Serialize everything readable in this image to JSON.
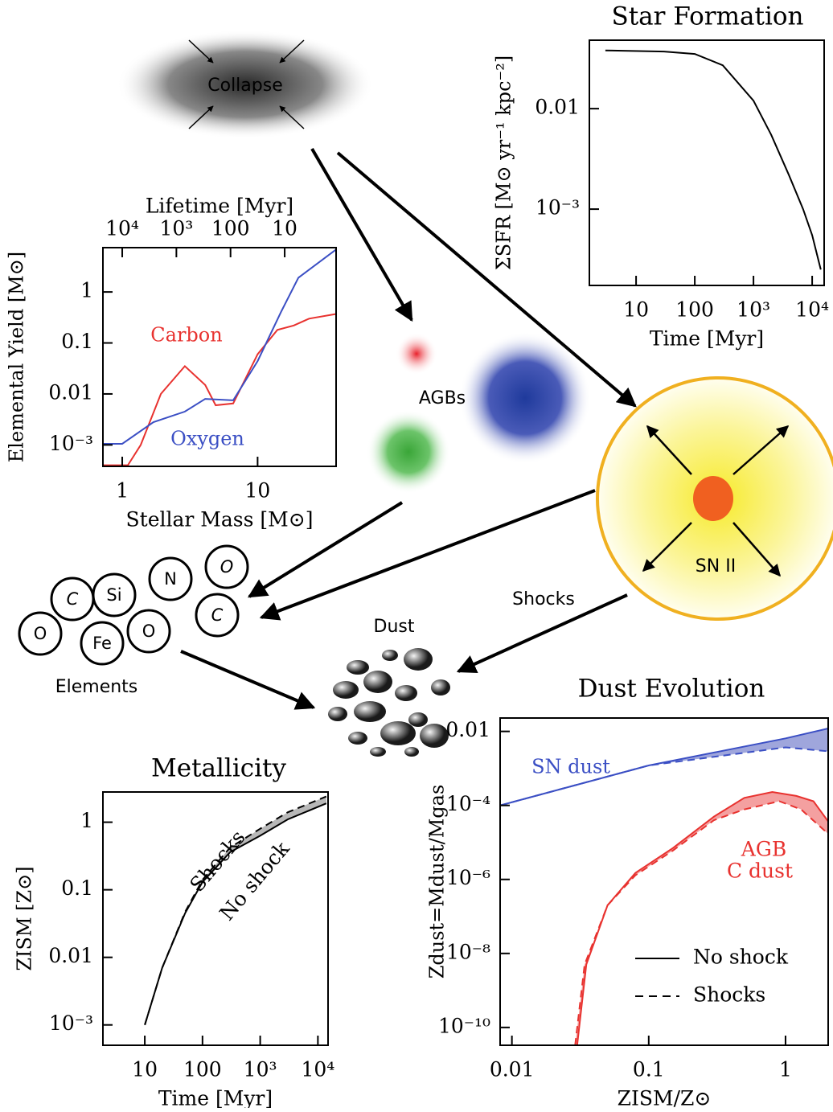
{
  "diagram": {
    "collapse": "Collapse",
    "agbs": "AGBs",
    "sn": "SN II",
    "shocks": "Shocks",
    "dust": "Dust",
    "elements_label": "Elements",
    "elements": [
      "C",
      "Si",
      "N",
      "O",
      "O",
      "Fe",
      "O",
      "C"
    ]
  },
  "chart_data": [
    {
      "type": "line",
      "title": "Star Formation",
      "xlabel": "Time [Myr]",
      "ylabel": "ΣSFR [M⊙ yr⁻¹ kpc⁻²]",
      "xscale": "log",
      "yscale": "log",
      "xlim": [
        1.6,
        16000
      ],
      "ylim": [
        0.000174,
        0.048
      ],
      "xticks": [
        10,
        100,
        {
          "value": 1000,
          "label": "10³"
        },
        {
          "value": 10000,
          "label": "10⁴"
        }
      ],
      "yticks": [
        {
          "value": 0.001,
          "label": "10⁻³"
        },
        0.01
      ],
      "series": [
        {
          "color": "#000000",
          "x": [
            3,
            30,
            100,
            300,
            1000,
            2000,
            4000,
            7000,
            10000,
            14000
          ],
          "values": [
            0.038,
            0.037,
            0.035,
            0.027,
            0.012,
            0.0055,
            0.0022,
            0.001,
            0.00055,
            0.00025
          ]
        }
      ]
    },
    {
      "type": "line",
      "xlabel": "Stellar Mass [M⊙]",
      "ylabel": "Elemental Yield [M⊙]",
      "x2label": "Lifetime [Myr]",
      "xscale": "log",
      "yscale": "log",
      "xlim": [
        0.72,
        38
      ],
      "ylim": [
        0.00038,
        7.4
      ],
      "xticks": [
        1,
        10
      ],
      "yticks": [
        {
          "value": 0.001,
          "label": "10⁻³"
        },
        0.01,
        0.1,
        1
      ],
      "x2ticks": [
        {
          "value": 10000,
          "label": "10⁴"
        },
        {
          "value": 1000,
          "label": "10³"
        },
        100,
        10
      ],
      "series": [
        {
          "name": "Carbon",
          "color": "#e8322f",
          "x": [
            0.72,
            1.1,
            1.37,
            1.93,
            2.9,
            4.1,
            4.9,
            6.6,
            10,
            14,
            18.5,
            24,
            38
          ],
          "values": [
            0.0004,
            0.0004,
            0.001,
            0.01,
            0.035,
            0.015,
            0.006,
            0.0065,
            0.06,
            0.18,
            0.22,
            0.3,
            0.37
          ]
        },
        {
          "name": "Oxygen",
          "color": "#3b4fc4",
          "x": [
            0.72,
            1.0,
            1.7,
            2.9,
            4.1,
            6.6,
            10,
            15,
            20,
            38
          ],
          "values": [
            0.00105,
            0.00105,
            0.0028,
            0.0045,
            0.008,
            0.0075,
            0.044,
            0.42,
            1.9,
            6.8
          ]
        }
      ]
    },
    {
      "type": "line",
      "title": "Metallicity",
      "xlabel": "Time [Myr]",
      "ylabel": "ZISM [Z⊙]",
      "xscale": "log",
      "yscale": "log",
      "xlim": [
        1.88,
        15000
      ],
      "ylim": [
        0.0005,
        2.8
      ],
      "xticks": [
        10,
        100,
        {
          "value": 1000,
          "label": "10³"
        },
        {
          "value": 10000,
          "label": "10⁴"
        }
      ],
      "yticks": [
        {
          "value": 0.001,
          "label": "10⁻³"
        },
        0.01,
        0.1,
        1
      ],
      "series": [
        {
          "color": "#000000",
          "x": [
            10,
            20,
            50,
            100,
            300,
            1000,
            3000,
            14000
          ],
          "values": [
            0.001,
            0.007,
            0.045,
            0.13,
            0.36,
            0.63,
            1.1,
            1.9
          ]
        },
        {
          "color": "#000000",
          "dash": true,
          "fill": "#b8b8b8",
          "x": [
            10,
            20,
            50,
            100,
            300,
            1000,
            3000,
            14000
          ],
          "values": [
            0.001,
            0.007,
            0.047,
            0.14,
            0.42,
            0.8,
            1.4,
            2.4
          ]
        }
      ],
      "annotations": [
        {
          "text": "Shocks",
          "color": "#000000"
        },
        {
          "text": "No shock",
          "color": "#000000"
        }
      ]
    },
    {
      "type": "line",
      "title": "Dust Evolution",
      "xlabel": "ZISM/Z⊙",
      "ylabel": "Zdust=Mdust/Mgas",
      "xscale": "log",
      "yscale": "log",
      "xlim": [
        0.0082,
        2.05
      ],
      "ylim": [
        3.3e-11,
        0.023
      ],
      "xticks": [
        0.01,
        0.1,
        1
      ],
      "yticks": [
        {
          "value": 1e-10,
          "label": "10⁻¹⁰"
        },
        {
          "value": 1e-08,
          "label": "10⁻⁸"
        },
        {
          "value": 1e-06,
          "label": "10⁻⁶"
        },
        {
          "value": 0.0001,
          "label": "10⁻⁴"
        },
        0.01
      ],
      "series": [
        {
          "name": "SN dust",
          "color": "#3b4fc4",
          "x": [
            0.0082,
            0.1,
            1,
            2.05
          ],
          "values": [
            0.0001,
            0.0012,
            0.0065,
            0.012
          ]
        },
        {
          "color": "#3b4fc4",
          "dash": true,
          "fill": "#9fa6dc",
          "x": [
            0.0082,
            0.1,
            1,
            2.05
          ],
          "values": [
            0.0001,
            0.0012,
            0.0037,
            0.0029
          ]
        },
        {
          "color": "#e8322f",
          "x": [
            0.03,
            0.035,
            0.05,
            0.08,
            0.15,
            0.3,
            0.5,
            0.8,
            1.2,
            1.6,
            2.05
          ],
          "values": [
            3.3e-11,
            5e-09,
            2e-07,
            1.5e-06,
            7e-06,
            5e-05,
            0.00016,
            0.00023,
            0.00018,
            0.00013,
            3.7e-05
          ]
        },
        {
          "color": "#e8322f",
          "dash": true,
          "fill": "#f4a0a0",
          "x": [
            0.029,
            0.034,
            0.05,
            0.08,
            0.15,
            0.3,
            0.5,
            0.9,
            1.3,
            2.05
          ],
          "values": [
            3.3e-11,
            5e-09,
            2e-07,
            1.3e-06,
            6e-06,
            4e-05,
            7.8e-05,
            0.00013,
            7.8e-05,
            1.7e-05
          ]
        }
      ],
      "annotations": [
        {
          "text": "AGB",
          "color": "#e8322f"
        },
        {
          "text": "C dust",
          "color": "#e8322f"
        }
      ],
      "legend": [
        {
          "label": "No shock",
          "dash": false
        },
        {
          "label": "Shocks",
          "dash": true
        }
      ]
    }
  ]
}
